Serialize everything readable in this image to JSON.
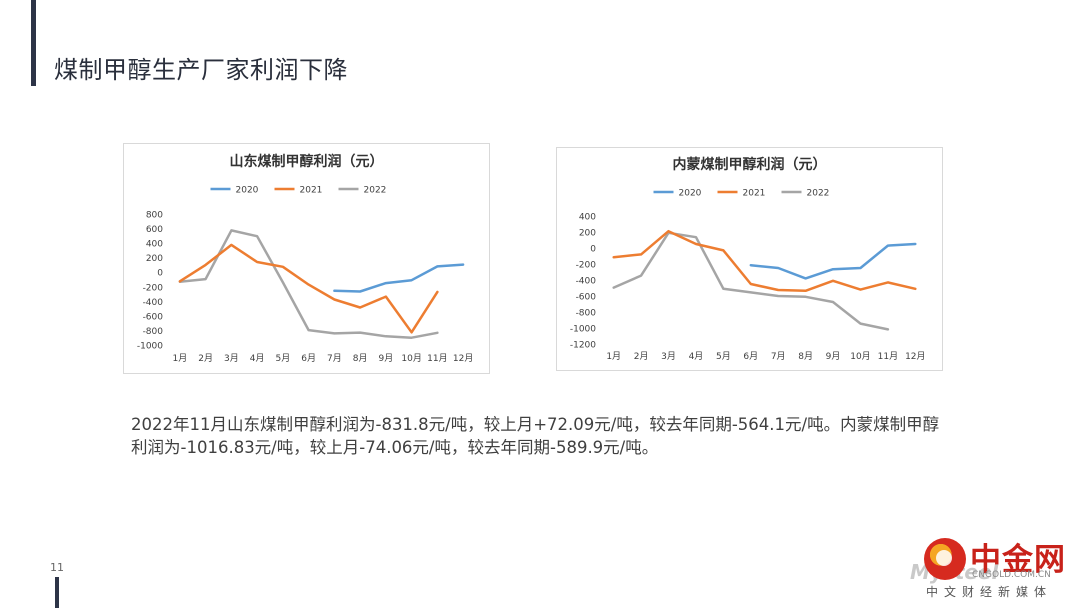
{
  "page": {
    "title": "煤制甲醇生产厂家利润下降",
    "summary": "2022年11月山东煤制甲醇利润为-831.8元/吨，较上月+72.09元/吨，较去年同期-564.1元/吨。内蒙煤制甲醇利润为-1016.83元/吨，较上月-74.06元/吨，较去年同期-589.9元/吨。",
    "page_number": "11",
    "colors": {
      "accent": "#2d3447",
      "s2020": "#5b9bd5",
      "s2021": "#ed7d31",
      "s2022": "#a5a5a5"
    }
  },
  "logo": {
    "name": "中金网",
    "watermark": "Mysteel",
    "domain": "CNGOLD.COM.CN",
    "tagline": "中文财经新媒体"
  },
  "chart_data": [
    {
      "id": "shandong",
      "type": "line",
      "title": "山东煤制甲醇利润（元）",
      "categories": [
        "1月",
        "2月",
        "3月",
        "4月",
        "5月",
        "6月",
        "7月",
        "8月",
        "9月",
        "10月",
        "11月",
        "12月"
      ],
      "yticks": [
        800,
        600,
        400,
        200,
        0,
        -200,
        -400,
        -600,
        -800,
        -1000
      ],
      "ylim": [
        -1000,
        800
      ],
      "legend_position": "top",
      "grid": false,
      "series": [
        {
          "name": "2020",
          "color": "#5b9bd5",
          "values": [
            null,
            null,
            null,
            null,
            null,
            null,
            -255,
            -265,
            -150,
            -110,
            80,
            105
          ]
        },
        {
          "name": "2021",
          "color": "#ed7d31",
          "values": [
            -125,
            100,
            375,
            140,
            75,
            -170,
            -375,
            -485,
            -335,
            -825,
            -270,
            null
          ]
        },
        {
          "name": "2022",
          "color": "#a5a5a5",
          "values": [
            -130,
            -95,
            575,
            495,
            -140,
            -795,
            -840,
            -830,
            -880,
            -900,
            -832,
            null
          ]
        }
      ]
    },
    {
      "id": "neimeng",
      "type": "line",
      "title": "内蒙煤制甲醇利润（元）",
      "categories": [
        "1月",
        "2月",
        "3月",
        "4月",
        "5月",
        "6月",
        "7月",
        "8月",
        "9月",
        "10月",
        "11月",
        "12月"
      ],
      "yticks": [
        400,
        200,
        0,
        -200,
        -400,
        -600,
        -800,
        -1000,
        -1200
      ],
      "ylim": [
        -1200,
        400
      ],
      "legend_position": "top",
      "grid": false,
      "series": [
        {
          "name": "2020",
          "color": "#5b9bd5",
          "values": [
            null,
            null,
            null,
            null,
            null,
            -215,
            -250,
            -380,
            -265,
            -250,
            30,
            50
          ]
        },
        {
          "name": "2021",
          "color": "#ed7d31",
          "values": [
            -115,
            -80,
            210,
            50,
            -30,
            -450,
            -525,
            -535,
            -410,
            -520,
            -430,
            -510
          ]
        },
        {
          "name": "2022",
          "color": "#a5a5a5",
          "values": [
            -495,
            -345,
            190,
            135,
            -510,
            -555,
            -600,
            -610,
            -675,
            -945,
            -1017,
            null
          ]
        }
      ]
    }
  ]
}
